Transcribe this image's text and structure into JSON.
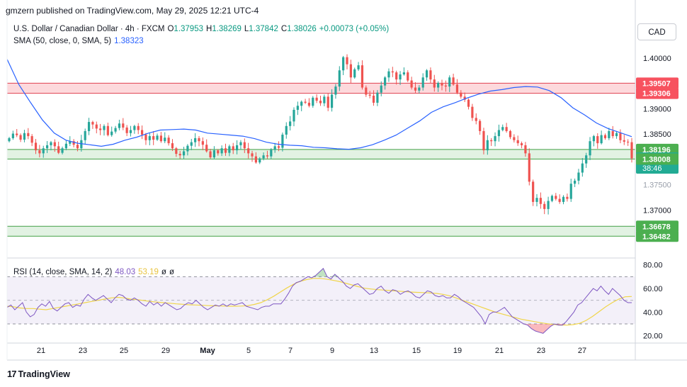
{
  "header": {
    "published": "gmzern published on TradingView.com, May 29, 2025 12:21 UTC-4"
  },
  "legend": {
    "symbol": "U.S. Dollar / Canadian Dollar · 4h · FXCM",
    "open_label": "O",
    "open": "1.37953",
    "high_label": "H",
    "high": "1.38269",
    "low_label": "L",
    "low": "1.37842",
    "close_label": "C",
    "close": "1.38026",
    "change": "+0.00073 (+0.05%)",
    "sma_label": "SMA (50, close, 0, SMA, 5)",
    "sma_value": "1.38323",
    "rsi_label": "RSI (14, close, SMA, 14, 2)",
    "rsi_value": "48.03",
    "rsi_ma_value": "53.19",
    "rsi_na1": "ø",
    "rsi_na2": "ø"
  },
  "currency_button": "CAD",
  "footer": {
    "brand": "TradingView",
    "logo": "17"
  },
  "colors": {
    "up": "#26a69a",
    "down": "#ef5350",
    "sma": "#2962ff",
    "rsi": "#7e57c2",
    "rsi_ma": "#f0d54a",
    "zone_red": "#f7525f",
    "zone_green": "#4caf50",
    "last_price": "#22ab94"
  },
  "chart_data": [
    {
      "type": "candlestick",
      "title": "U.S. Dollar / Canadian Dollar · 4h · FXCM",
      "x_ticks": [
        "21",
        "23",
        "25",
        "29",
        "May",
        "5",
        "7",
        "9",
        "13",
        "15",
        "19",
        "21",
        "23",
        "27"
      ],
      "y_ticks": [
        "1.40000",
        "1.39000",
        "1.38500",
        "1.37000"
      ],
      "ylim": [
        1.3608,
        1.408
      ],
      "grid": false,
      "price_labels": [
        {
          "value": 1.39507,
          "text": "1.39507",
          "kind": "zone-red"
        },
        {
          "value": 1.39306,
          "text": "1.39306",
          "kind": "zone-red"
        },
        {
          "value": 1.38196,
          "text": "1.38196",
          "kind": "zone-green"
        },
        {
          "value": 1.38026,
          "text": "1.38026",
          "sub": "38:46",
          "kind": "last"
        },
        {
          "value": 1.38008,
          "text": "1.38008",
          "kind": "zone-green"
        },
        {
          "value": 1.36678,
          "text": "1.36678",
          "kind": "zone-green"
        },
        {
          "value": 1.36482,
          "text": "1.36482",
          "kind": "zone-green"
        }
      ],
      "zones": [
        {
          "name": "resistance",
          "top": 1.39507,
          "bottom": 1.39306,
          "color": "red"
        },
        {
          "name": "support",
          "top": 1.38196,
          "bottom": 1.38008,
          "color": "green"
        },
        {
          "name": "support-lower",
          "top": 1.36678,
          "bottom": 1.36482,
          "color": "green"
        }
      ],
      "price_path": [
        1.3842,
        1.3851,
        1.3848,
        1.3839,
        1.3852,
        1.3846,
        1.3833,
        1.3818,
        1.3812,
        1.3822,
        1.3828,
        1.3834,
        1.3826,
        1.3813,
        1.3822,
        1.3831,
        1.3836,
        1.3829,
        1.3822,
        1.3838,
        1.3856,
        1.3874,
        1.3869,
        1.3861,
        1.3858,
        1.3866,
        1.3848,
        1.3855,
        1.3862,
        1.3871,
        1.3863,
        1.3852,
        1.3858,
        1.3866,
        1.3858,
        1.3849,
        1.3838,
        1.3846,
        1.3839,
        1.3847,
        1.3836,
        1.3843,
        1.3832,
        1.3822,
        1.3811,
        1.3808,
        1.3816,
        1.3827,
        1.3834,
        1.3842,
        1.3836,
        1.3829,
        1.3816,
        1.3804,
        1.3818,
        1.3812,
        1.3822,
        1.3813,
        1.3826,
        1.3818,
        1.3828,
        1.3834,
        1.3822,
        1.3812,
        1.3806,
        1.3794,
        1.3802,
        1.3808,
        1.3806,
        1.3819,
        1.3826,
        1.3823,
        1.3849,
        1.3866,
        1.3875,
        1.3898,
        1.3906,
        1.3914,
        1.3912,
        1.3906,
        1.3922,
        1.3916,
        1.3911,
        1.3924,
        1.3902,
        1.3928,
        1.3944,
        1.3976,
        1.4002,
        1.3988,
        1.3962,
        1.3978,
        1.3986,
        1.3942,
        1.3928,
        1.3926,
        1.3912,
        1.3932,
        1.3946,
        1.3962,
        1.3974,
        1.3972,
        1.3958,
        1.3968,
        1.3972,
        1.3956,
        1.3942,
        1.3936,
        1.3942,
        1.3962,
        1.3976,
        1.3958,
        1.3942,
        1.3951,
        1.3946,
        1.3944,
        1.3962,
        1.3948,
        1.3932,
        1.3924,
        1.3918,
        1.3904,
        1.3882,
        1.3876,
        1.3856,
        1.3818,
        1.3838,
        1.3836,
        1.3846,
        1.3858,
        1.3864,
        1.3856,
        1.3844,
        1.3838,
        1.3832,
        1.3828,
        1.3812,
        1.3756,
        1.3716,
        1.3724,
        1.3712,
        1.3702,
        1.3718,
        1.3728,
        1.3722,
        1.3716,
        1.3726,
        1.3722,
        1.3752,
        1.3758,
        1.3774,
        1.3792,
        1.3808,
        1.3836,
        1.3846,
        1.3832,
        1.3848,
        1.3842,
        1.3856,
        1.3846,
        1.3852,
        1.3838,
        1.3835,
        1.3834,
        1.3802
      ],
      "sma_values": [
        1.3998,
        1.3948,
        1.3912,
        1.3878,
        1.3852,
        1.3838,
        1.3832,
        1.3829,
        1.3826,
        1.383,
        1.3838,
        1.3844,
        1.3852,
        1.3858,
        1.3859,
        1.386,
        1.3858,
        1.3852,
        1.385,
        1.3848,
        1.3846,
        1.3841,
        1.3834,
        1.383,
        1.3828,
        1.3827,
        1.3824,
        1.3823,
        1.3821,
        1.382,
        1.3823,
        1.3829,
        1.3838,
        1.3848,
        1.3862,
        1.3876,
        1.3893,
        1.3904,
        1.3912,
        1.3921,
        1.3929,
        1.3935,
        1.3938,
        1.3942,
        1.3944,
        1.3943,
        1.3936,
        1.3922,
        1.3902,
        1.3888,
        1.3872,
        1.3861,
        1.3853,
        1.3845
      ],
      "sma_series_name": "SMA (50, close, 0, SMA, 5)"
    },
    {
      "type": "line",
      "title": "RSI (14, close, SMA, 14, 2)",
      "y_ticks": [
        "80.00",
        "60.00",
        "40.00",
        "20.00"
      ],
      "ylim": [
        15,
        84
      ],
      "bands": [
        70,
        50,
        30
      ],
      "series": [
        {
          "name": "RSI",
          "values": [
            44,
            46,
            42,
            45,
            48,
            40,
            36,
            38,
            44,
            47,
            45,
            49,
            43,
            41,
            44,
            47,
            48,
            44,
            46,
            45,
            51,
            55,
            52,
            50,
            52,
            54,
            51,
            48,
            52,
            55,
            54,
            51,
            50,
            52,
            50,
            47,
            45,
            49,
            46,
            48,
            45,
            48,
            46,
            44,
            42,
            43,
            46,
            48,
            47,
            50,
            47,
            44,
            42,
            44,
            46,
            45,
            47,
            45,
            47,
            46,
            47,
            48,
            45,
            44,
            43,
            42,
            44,
            45,
            45,
            47,
            47,
            47,
            51,
            56,
            62,
            65,
            66,
            68,
            70,
            69,
            71,
            74,
            77,
            70,
            68,
            72,
            69,
            66,
            62,
            60,
            63,
            64,
            61,
            58,
            55,
            56,
            60,
            62,
            58,
            56,
            59,
            58,
            55,
            57,
            58,
            56,
            53,
            52,
            55,
            58,
            57,
            54,
            53,
            54,
            52,
            52,
            55,
            53,
            50,
            48,
            46,
            44,
            40,
            36,
            30,
            38,
            40,
            40,
            42,
            44,
            40,
            36,
            34,
            32,
            30,
            29,
            26,
            24,
            23,
            22,
            25,
            28,
            30,
            29,
            29,
            32,
            36,
            40,
            46,
            48,
            52,
            56,
            60,
            58,
            62,
            58,
            55,
            60,
            57,
            54,
            50,
            48,
            48
          ]
        },
        {
          "name": "RSI-based MA",
          "values": [
            45,
            44.5,
            43.5,
            43,
            43,
            42.5,
            42,
            43,
            44,
            45,
            46,
            47,
            48,
            49,
            50,
            51,
            52,
            52.5,
            52,
            51,
            50.5,
            49.8,
            49,
            48.5,
            48,
            47.5,
            47,
            46.6,
            46.2,
            46,
            45.8,
            45.5,
            45.3,
            45.2,
            45,
            45,
            45.1,
            45.5,
            46.5,
            48,
            50.5,
            53.5,
            57,
            60.5,
            63.5,
            66,
            67.5,
            68.5,
            68.6,
            68,
            67,
            66,
            64.5,
            63,
            61.5,
            60.2,
            59.5,
            59,
            58.6,
            58.2,
            57.8,
            57.4,
            57,
            56.7,
            56.5,
            56.2,
            55.8,
            55,
            53.8,
            52,
            50,
            48,
            46,
            44,
            42,
            40,
            38.5,
            37,
            35.5,
            34,
            33,
            32,
            31,
            30.2,
            29.5,
            29,
            29,
            29.4,
            30.5,
            33,
            36.5,
            40.5,
            44.5,
            48,
            51,
            53,
            53.2
          ]
        }
      ]
    }
  ]
}
